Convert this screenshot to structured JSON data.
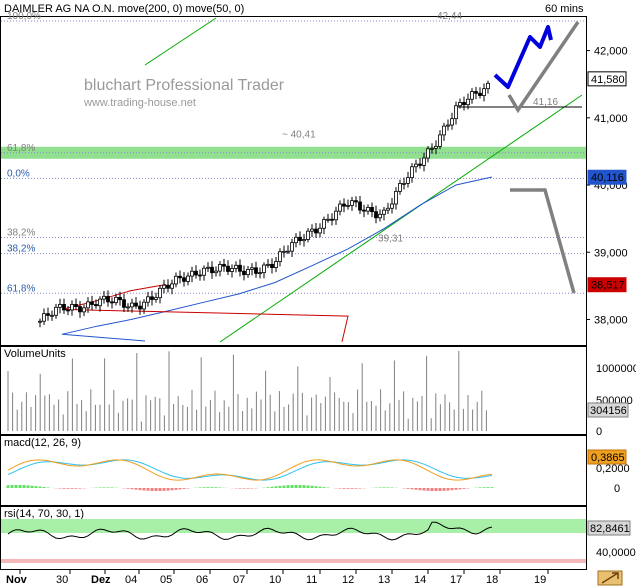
{
  "header": {
    "title": "DAIMLER AG NA O.N. move(200, 0) move(50, 0)",
    "interval": "60 mins"
  },
  "watermark": {
    "line1": "bluchart Professional Trader",
    "line2": "www.trading-house.net"
  },
  "colors": {
    "fib_band": "#90e090",
    "ma200": "#cc0000",
    "ma50": "#2255cc",
    "trend": "#00aa00",
    "projection_up": "#0000dd",
    "projection_down": "#808080",
    "volume": "#808080",
    "macd": "#f0a020",
    "signal": "#30c0f0",
    "hist_pos": "#60e060",
    "hist_neg": "#f08080",
    "rsi_band": "#a8f0a8"
  },
  "main_panel": {
    "price_axis": {
      "min": 37.65,
      "max": 42.5,
      "ticks": [
        "42,000",
        "41,000",
        "40,000",
        "39,000",
        "38,000"
      ]
    },
    "price_badges": [
      "41,580",
      "40,116",
      "38,517"
    ],
    "fib_levels": [
      {
        "label": "100,0%",
        "value": 42.44
      },
      {
        "label": "61,8%",
        "value": 40.48
      },
      {
        "label": "0,0%",
        "value": 40.1
      },
      {
        "label": "38,2%",
        "value": 39.22
      },
      {
        "label": "38,2%",
        "value": 38.98
      },
      {
        "label": "61,8%",
        "value": 38.39
      }
    ],
    "annotations": [
      "42,44",
      "41,16",
      "~ 40,41",
      "39,31"
    ]
  },
  "volume_panel": {
    "title": "VolumeUnits",
    "axis_ticks": [
      "1000000",
      "500000",
      "0"
    ],
    "badge": "304156"
  },
  "macd_panel": {
    "title": "macd(12, 26, 9)",
    "axis_ticks": [
      "0,2000",
      "0"
    ],
    "badge": "0,3865"
  },
  "rsi_panel": {
    "title": "rsi(14, 70, 30, 1)",
    "axis_ticks": [
      "40,0000"
    ],
    "badge": "82,8461"
  },
  "x_axis": {
    "labels": [
      "Nov",
      "30",
      "Dez",
      "04",
      "05",
      "06",
      "07",
      "10",
      "11",
      "12",
      "13",
      "14",
      "17",
      "18",
      "19"
    ]
  },
  "chart_data": {
    "type": "line",
    "title": "DAIMLER AG NA O.N. move(200, 0) move(50, 0)",
    "interval": "60 mins",
    "x": [
      "Nov",
      "30",
      "Dez",
      "04",
      "05",
      "06",
      "07",
      "10",
      "11",
      "12",
      "13",
      "14",
      "17",
      "18"
    ],
    "ylim": [
      37.65,
      42.5
    ],
    "series": [
      {
        "name": "",
        "values": [
          37.75,
          38.15,
          38.28,
          38.2,
          38.45,
          38.78,
          38.7,
          38.85,
          39.35,
          39.7,
          39.6,
          40.35,
          41.1,
          41.55
        ]
      },
      {
        "name": "move(50, 0)",
        "values": [
          37.67,
          37.78,
          37.9,
          38.0,
          38.12,
          38.25,
          38.38,
          38.55,
          38.8,
          39.05,
          39.35,
          39.7,
          40.0,
          40.12
        ]
      },
      {
        "name": "move(200, 0)",
        "values": [
          37.52,
          37.58,
          37.62,
          37.67,
          37.72,
          37.78,
          37.83,
          37.9,
          37.97,
          38.05,
          38.15,
          38.28,
          38.43,
          38.52
        ]
      }
    ]
  }
}
